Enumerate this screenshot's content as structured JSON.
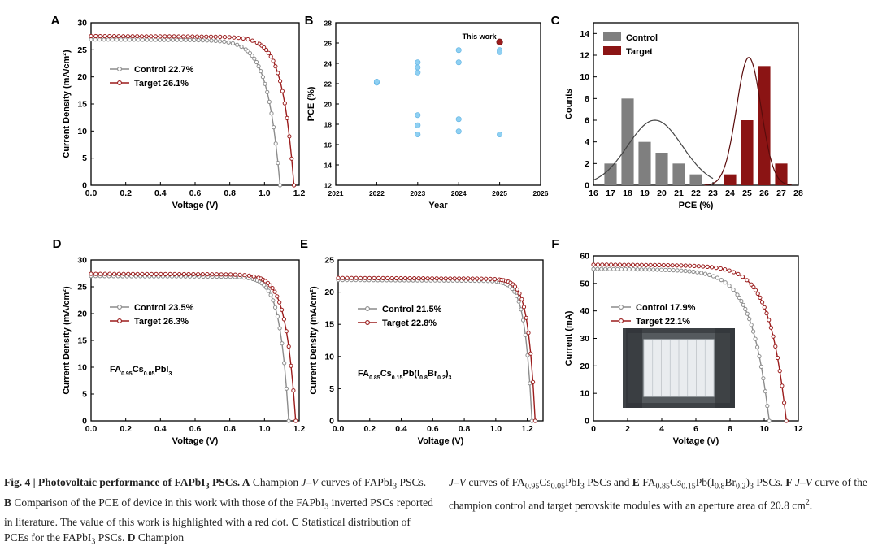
{
  "chart_data": [
    {
      "panel": "A",
      "type": "line",
      "xlabel": "Voltage (V)",
      "ylabel": "Current Density (mA/cm²)",
      "xlim": [
        0,
        1.2
      ],
      "ylim": [
        0,
        30
      ],
      "xticks": [
        "0.0",
        "0.2",
        "0.4",
        "0.6",
        "0.8",
        "1.0",
        "1.2"
      ],
      "yticks": [
        "0",
        "5",
        "10",
        "15",
        "20",
        "25",
        "30"
      ],
      "series": [
        {
          "name": "Control 22.7%",
          "color": "#8c8c8c",
          "jsc": 25.8,
          "voc": 1.09,
          "knee": 0.86
        },
        {
          "name": "Target 26.1%",
          "color": "#9b1c1c",
          "jsc": 26.4,
          "voc": 1.17,
          "knee": 0.96
        }
      ]
    },
    {
      "panel": "B",
      "type": "scatter",
      "xlabel": "Year",
      "ylabel": "PCE (%)",
      "xlim": [
        2021,
        2026
      ],
      "ylim": [
        12,
        28
      ],
      "xticks": [
        "2021",
        "2022",
        "2023",
        "2024",
        "2025",
        "2026"
      ],
      "yticks": [
        "12",
        "14",
        "16",
        "18",
        "20",
        "22",
        "24",
        "26",
        "28"
      ],
      "points": [
        {
          "x": 2022,
          "y": 22.1
        },
        {
          "x": 2022,
          "y": 22.2
        },
        {
          "x": 2023,
          "y": 24.1
        },
        {
          "x": 2023,
          "y": 23.6
        },
        {
          "x": 2023,
          "y": 23.1
        },
        {
          "x": 2023,
          "y": 18.9
        },
        {
          "x": 2023,
          "y": 17.9
        },
        {
          "x": 2023,
          "y": 17.0
        },
        {
          "x": 2024,
          "y": 25.3
        },
        {
          "x": 2024,
          "y": 24.1
        },
        {
          "x": 2024,
          "y": 18.5
        },
        {
          "x": 2024,
          "y": 17.3
        },
        {
          "x": 2025,
          "y": 25.3
        },
        {
          "x": 2025,
          "y": 25.1
        },
        {
          "x": 2025,
          "y": 17.0
        }
      ],
      "highlight": {
        "x": 2025,
        "y": 26.1,
        "label": "This work",
        "color": "#9b1c1c"
      },
      "point_color": "#8fd0f2"
    },
    {
      "panel": "C",
      "type": "bar",
      "xlabel": "PCE (%)",
      "ylabel": "Counts",
      "xlim": [
        16,
        28
      ],
      "ylim": [
        0,
        15
      ],
      "xticks": [
        "16",
        "17",
        "18",
        "19",
        "20",
        "21",
        "22",
        "23",
        "24",
        "25",
        "26",
        "27",
        "28"
      ],
      "yticks": [
        "0",
        "2",
        "4",
        "6",
        "8",
        "10",
        "12",
        "14"
      ],
      "series": [
        {
          "name": "Control",
          "color": "#7f7f7f",
          "x": [
            17,
            18,
            19,
            20,
            21,
            22
          ],
          "values": [
            2,
            8,
            4,
            3,
            2,
            1
          ],
          "fit_mean": 19.6,
          "fit_sd": 1.6,
          "fit_peak": 6
        },
        {
          "name": "Target",
          "color": "#8b1414",
          "x": [
            24,
            25,
            26,
            27
          ],
          "values": [
            1,
            6,
            11,
            2
          ],
          "fit_mean": 25.1,
          "fit_sd": 0.72,
          "fit_peak": 11.8
        }
      ]
    },
    {
      "panel": "D",
      "type": "line",
      "xlabel": "Voltage (V)",
      "ylabel": "Current Density (mA/cm²)",
      "xlim": [
        0,
        1.2
      ],
      "ylim": [
        0,
        30
      ],
      "xticks": [
        "0.0",
        "0.2",
        "0.4",
        "0.6",
        "0.8",
        "1.0",
        "1.2"
      ],
      "yticks": [
        "0",
        "5",
        "10",
        "15",
        "20",
        "25",
        "30"
      ],
      "composition": {
        "base": "FA",
        "parts": [
          [
            "0.95",
            "sub"
          ],
          [
            "Cs",
            ""
          ],
          [
            "0.05",
            "sub"
          ],
          [
            "PbI",
            ""
          ],
          [
            "3",
            "sub"
          ]
        ]
      },
      "series": [
        {
          "name": "Control 23.5%",
          "color": "#8c8c8c",
          "jsc": 25.9,
          "voc": 1.14,
          "knee": 0.98
        },
        {
          "name": "Target 26.3%",
          "color": "#9b1c1c",
          "jsc": 26.3,
          "voc": 1.18,
          "knee": 1.0
        }
      ]
    },
    {
      "panel": "E",
      "type": "line",
      "xlabel": "Voltage (V)",
      "ylabel": "Current Density (mA/cm²)",
      "xlim": [
        0,
        1.3
      ],
      "ylim": [
        0,
        25
      ],
      "xticks": [
        "0.0",
        "0.2",
        "0.4",
        "0.6",
        "0.8",
        "1.0",
        "1.2"
      ],
      "yticks": [
        "0",
        "5",
        "10",
        "15",
        "20",
        "25"
      ],
      "composition": {
        "base": "FA",
        "parts": [
          [
            "0.85",
            "sub"
          ],
          [
            "Cs",
            ""
          ],
          [
            "0.15",
            "sub"
          ],
          [
            "Pb(I",
            ""
          ],
          [
            "0.8",
            "sub"
          ],
          [
            "Br",
            ""
          ],
          [
            "0.2",
            "sub"
          ],
          [
            ")",
            ""
          ],
          [
            "3",
            "sub"
          ]
        ]
      },
      "series": [
        {
          "name": "Control 21.5%",
          "color": "#8c8c8c",
          "jsc": 21.0,
          "voc": 1.23,
          "knee": 1.09
        },
        {
          "name": "Target 22.8%",
          "color": "#9b1c1c",
          "jsc": 21.3,
          "voc": 1.25,
          "knee": 1.11
        }
      ]
    },
    {
      "panel": "F",
      "type": "line",
      "xlabel": "Voltage (V)",
      "ylabel": "Current (mA)",
      "xlim": [
        0,
        12
      ],
      "ylim": [
        0,
        60
      ],
      "xticks": [
        "0",
        "2",
        "4",
        "6",
        "8",
        "10",
        "12"
      ],
      "yticks": [
        "0",
        "10",
        "20",
        "30",
        "40",
        "50",
        "60"
      ],
      "series": [
        {
          "name": "Control 17.9%",
          "color": "#8c8c8c",
          "jsc": 53.0,
          "voc": 10.3,
          "knee": 7.0
        },
        {
          "name": "Target 22.1%",
          "color": "#9b1c1c",
          "jsc": 54.5,
          "voc": 11.3,
          "knee": 8.2
        }
      ],
      "inset": "photo of perovskite module"
    }
  ],
  "caption": {
    "left": [
      {
        "t": "Fig. 4 | Photovoltaic performance of FAPbI",
        "b": true
      },
      {
        "t": "3",
        "b": true,
        "sub": true
      },
      {
        "t": " PSCs. ",
        "b": true
      },
      {
        "t": "A",
        "b": true
      },
      {
        "t": " Champion "
      },
      {
        "t": "J–V",
        "i": true
      },
      {
        "t": " curves of FAPbI"
      },
      {
        "t": "3",
        "sub": true
      },
      {
        "t": " PSCs. "
      },
      {
        "t": "B",
        "b": true
      },
      {
        "t": " Comparison of the PCE of device in this work with those of the FAPbI"
      },
      {
        "t": "3",
        "sub": true
      },
      {
        "t": " inverted PSCs reported in literature. The value of this work is highlighted with a red dot. "
      },
      {
        "t": "C",
        "b": true
      },
      {
        "t": " Statistical distribution of PCEs for the FAPbI"
      },
      {
        "t": "3",
        "sub": true
      },
      {
        "t": " PSCs. "
      },
      {
        "t": "D",
        "b": true
      },
      {
        "t": " Champion"
      }
    ],
    "right": [
      {
        "t": "J–V",
        "i": true
      },
      {
        "t": " curves of FA"
      },
      {
        "t": "0.95",
        "sub": true
      },
      {
        "t": "Cs"
      },
      {
        "t": "0.05",
        "sub": true
      },
      {
        "t": "PbI"
      },
      {
        "t": "3",
        "sub": true
      },
      {
        "t": " PSCs and "
      },
      {
        "t": "E",
        "b": true
      },
      {
        "t": " FA"
      },
      {
        "t": "0.85",
        "sub": true
      },
      {
        "t": "Cs"
      },
      {
        "t": "0.15",
        "sub": true
      },
      {
        "t": "Pb(I"
      },
      {
        "t": "0.8",
        "sub": true
      },
      {
        "t": "Br"
      },
      {
        "t": "0.2",
        "sub": true
      },
      {
        "t": ")"
      },
      {
        "t": "3",
        "sub": true
      },
      {
        "t": " PSCs. "
      },
      {
        "t": "F",
        "b": true
      },
      {
        "t": " "
      },
      {
        "t": "J–V",
        "i": true
      },
      {
        "t": " curve of the champion control and target perovskite modules with an aperture area of 20.8 cm"
      },
      {
        "t": "2",
        "sup": true
      },
      {
        "t": "."
      }
    ]
  }
}
